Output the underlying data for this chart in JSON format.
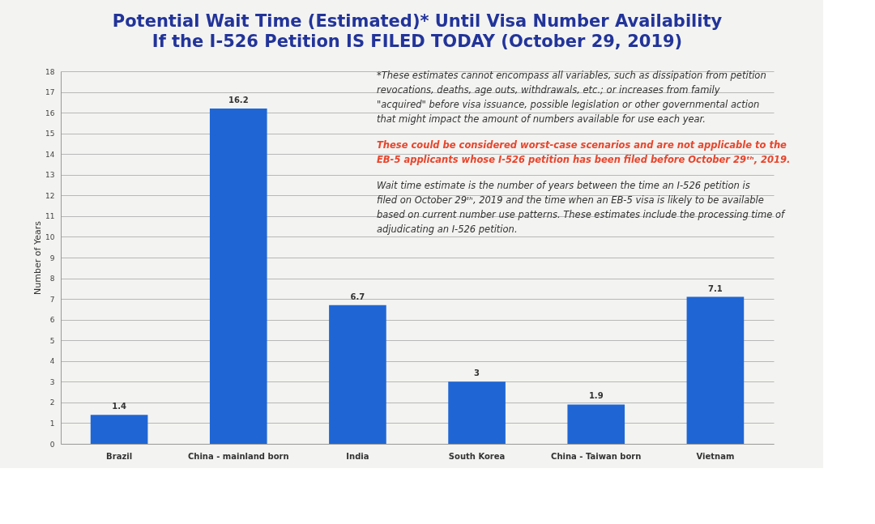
{
  "chart_data": {
    "type": "bar",
    "title": "Potential Wait Time (Estimated)* Until Visa Number Availability",
    "subtitle": "If the I-526 Petition IS FILED TODAY (October 29, 2019)",
    "ylabel": "Number of Years",
    "categories": [
      "Brazil",
      "China - mainland born",
      "India",
      "South Korea",
      "China - Taiwan born",
      "Vietnam"
    ],
    "values": [
      1.4,
      16.2,
      6.7,
      3,
      1.9,
      7.1
    ],
    "color": "#1f66d4",
    "ylim": [
      0,
      18
    ],
    "yticks": [
      0,
      1,
      2,
      3,
      4,
      5,
      6,
      7,
      8,
      9,
      10,
      11,
      12,
      13,
      14,
      15,
      16,
      17,
      18
    ],
    "grid": "y",
    "data_labels": true,
    "annotations": [
      "*These estimates cannot encompass all variables, such as dissipation from petition revocations, deaths, age outs, withdrawals, etc.; or increases from family \"acquired\" before visa issuance, possible legislation or other governmental action that might impact the amount of numbers available for use each year.",
      "These could be considered worst-case scenarios and are not applicable to the EB-5 applicants whose I-526 petition has been filed before October 29ᵗʰ, 2019.",
      "Wait time estimate is the number of years between the time an I-526 petition is filed on October 29ᵗʰ, 2019 and the time when an EB-5 visa is likely to be available based on current number use patterns. These estimates include the processing time of adjudicating an I-526 petition."
    ]
  }
}
